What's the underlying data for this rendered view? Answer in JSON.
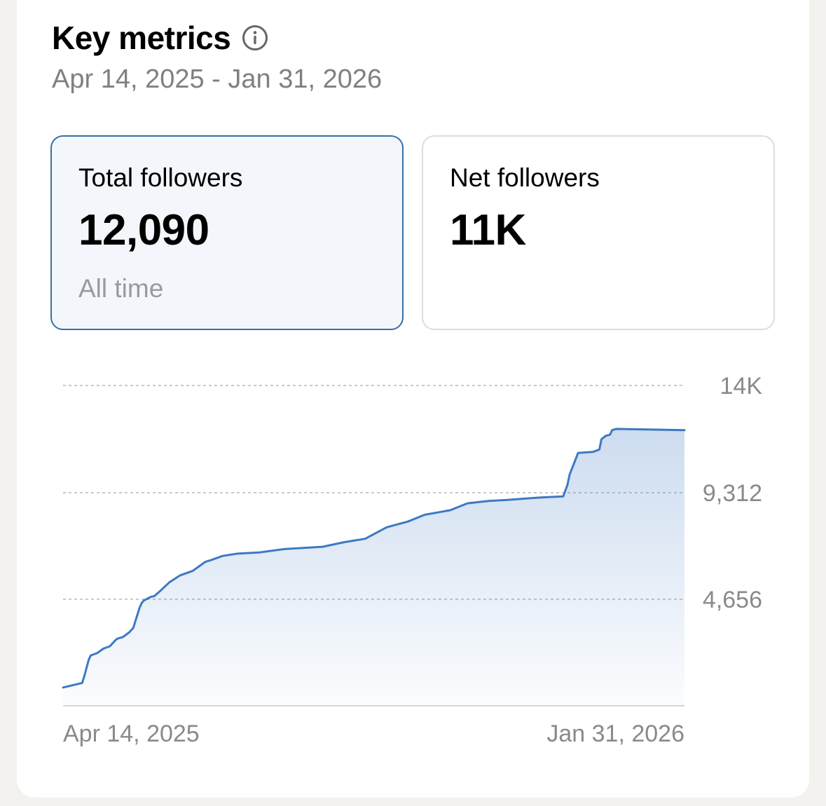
{
  "header": {
    "title": "Key metrics",
    "info_icon": "info-circle-icon",
    "date_range": "Apr 14, 2025 - Jan 31, 2026"
  },
  "metrics": [
    {
      "label": "Total followers",
      "value": "12,090",
      "sub": "All time",
      "selected": true
    },
    {
      "label": "Net followers",
      "value": "11K",
      "sub": "",
      "selected": false
    }
  ],
  "colors": {
    "accent": "#3a6fa7",
    "line": "#3d79c3",
    "grid": "#b8b8b8",
    "axis_text": "#8a8a8a"
  },
  "chart_data": {
    "type": "area",
    "title": "Total followers",
    "xlabel": "",
    "ylabel": "",
    "ylim": [
      0,
      14000
    ],
    "y_tick_values": [
      4656,
      9312,
      14000
    ],
    "y_tick_labels": [
      "4,656",
      "9,312",
      "14K"
    ],
    "x_tick_labels": [
      "Apr 14, 2025",
      "Jan 31, 2026"
    ],
    "x_domain": [
      0,
      292
    ],
    "grid": true,
    "series": [
      {
        "name": "Total followers",
        "x": [
          0,
          9,
          10,
          12,
          13,
          16,
          19,
          22,
          25,
          26,
          28,
          31,
          33,
          35,
          36,
          37,
          38,
          41,
          43,
          46,
          50,
          55,
          61,
          67,
          69,
          75,
          82,
          92,
          104,
          122,
          132,
          142,
          152,
          156,
          162,
          170,
          176,
          182,
          190,
          200,
          209,
          216,
          224,
          235,
          237,
          238,
          242,
          249,
          252,
          253,
          255,
          257,
          258,
          260,
          292
        ],
        "values": [
          800,
          1000,
          1300,
          2000,
          2200,
          2300,
          2500,
          2600,
          2900,
          2950,
          3000,
          3200,
          3400,
          4000,
          4300,
          4500,
          4600,
          4750,
          4800,
          5050,
          5400,
          5700,
          5900,
          6300,
          6350,
          6550,
          6650,
          6700,
          6850,
          6950,
          7150,
          7300,
          7800,
          7900,
          8050,
          8350,
          8450,
          8550,
          8850,
          8950,
          9000,
          9050,
          9100,
          9150,
          9650,
          10100,
          11050,
          11100,
          11200,
          11650,
          11800,
          11850,
          12050,
          12100,
          12050
        ]
      }
    ]
  }
}
